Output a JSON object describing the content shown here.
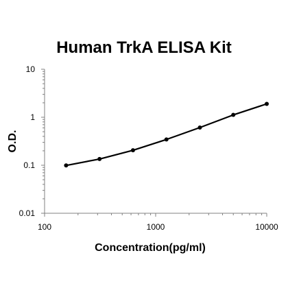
{
  "chart_data": {
    "type": "line",
    "title": "Human TrkA ELISA Kit",
    "xlabel": "Concentration(pg/ml)",
    "ylabel": "O.D.",
    "x_scale": "log",
    "y_scale": "log",
    "xlim": [
      100,
      10000
    ],
    "ylim": [
      0.01,
      10
    ],
    "x_ticks": [
      "100",
      "1000",
      "10000"
    ],
    "y_ticks": [
      "0.01",
      "0.1",
      "1",
      "10"
    ],
    "grid": false,
    "legend": "none",
    "series": [
      {
        "x": [
          156.25,
          312.5,
          625,
          1250,
          2500,
          5000,
          10000
        ],
        "y": [
          0.099,
          0.135,
          0.205,
          0.345,
          0.61,
          1.12,
          1.9
        ]
      }
    ],
    "colors": {
      "line": "#000000",
      "axis": "#808080"
    }
  }
}
